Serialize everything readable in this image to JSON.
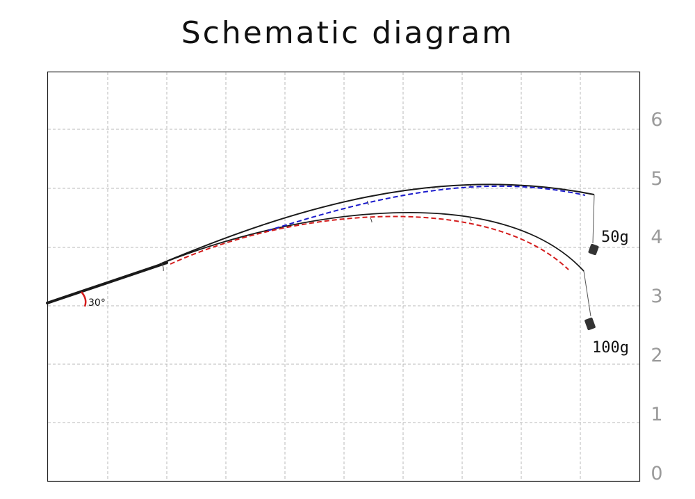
{
  "title": "Schematic diagram",
  "y_ticks": [
    "0",
    "1",
    "2",
    "3",
    "4",
    "5",
    "6"
  ],
  "angle_label": "30°",
  "weights": [
    {
      "label": "50g",
      "curve_color": "#1a1acc"
    },
    {
      "label": "100g",
      "curve_color": "#d41c1c"
    }
  ],
  "colors": {
    "grid": "#b8b8b8",
    "rod": "#1a1a1a",
    "angle_arc": "#d41c1c",
    "tick_labels": "#9a9a9a"
  }
}
